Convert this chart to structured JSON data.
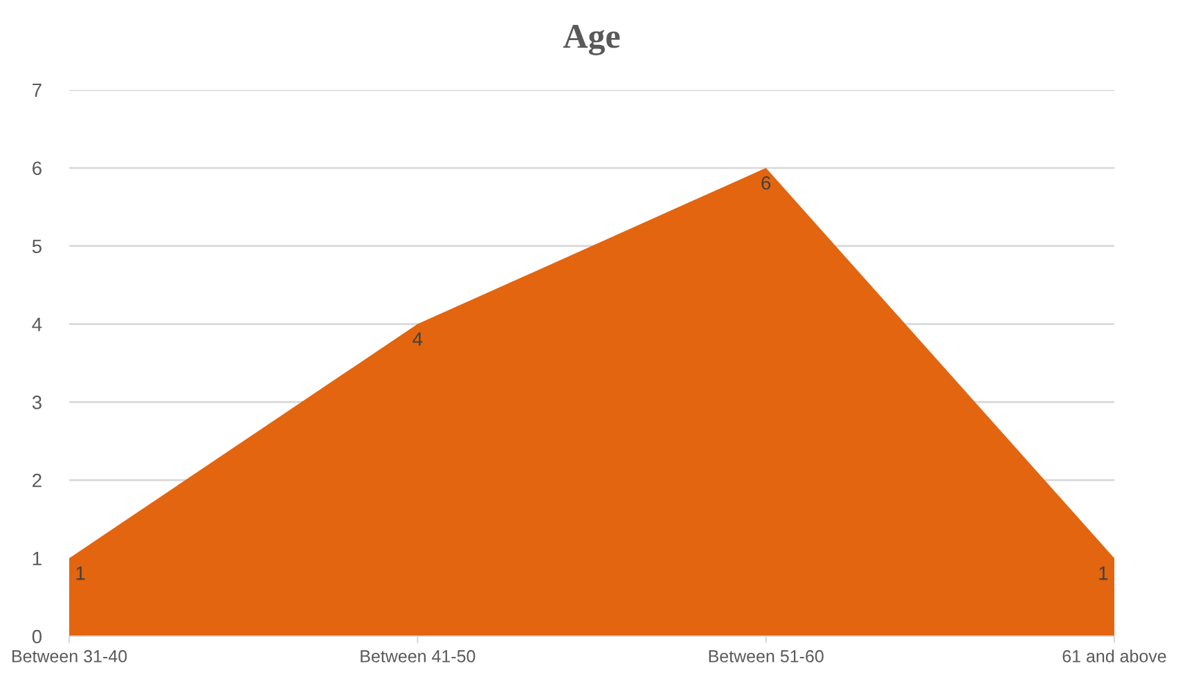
{
  "chart_data": {
    "type": "area",
    "title": "Age",
    "categories": [
      "Between 31-40",
      "Between 41-50",
      "Between 51-60",
      "61 and above"
    ],
    "series": [
      {
        "color": "#e3650f",
        "values": [
          1,
          4,
          6,
          1
        ]
      }
    ],
    "ylim": [
      0,
      7
    ],
    "yticks": [
      0,
      1,
      2,
      3,
      4,
      5,
      6,
      7
    ],
    "grid": "y",
    "data_labels": true
  }
}
